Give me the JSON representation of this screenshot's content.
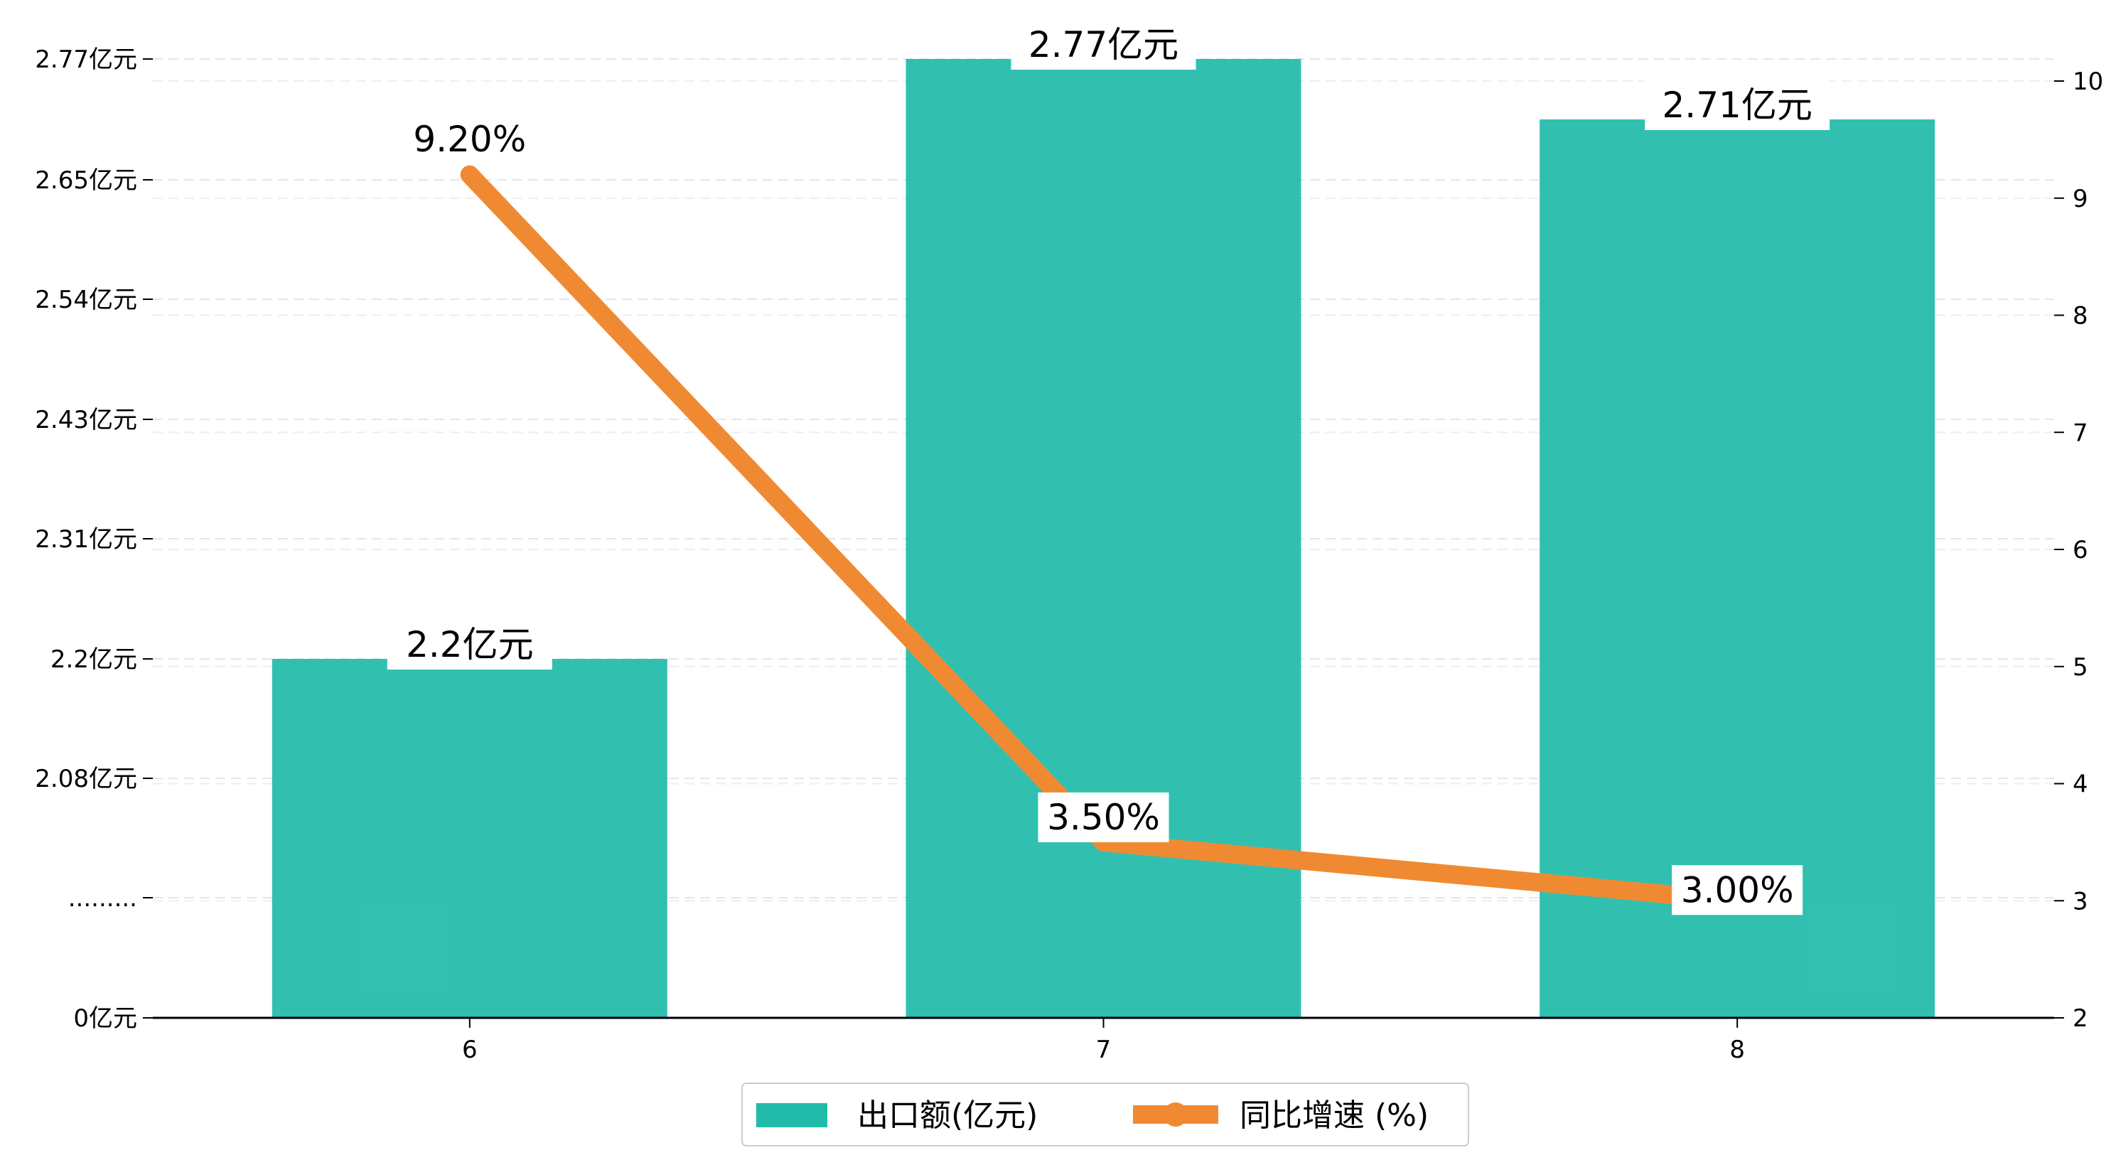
{
  "chart_data": {
    "type": "bar",
    "categories": [
      "6",
      "7",
      "8"
    ],
    "series": [
      {
        "name": "出口额(亿元)",
        "type": "bar",
        "axis": "left",
        "color": "#20bba9",
        "values": [
          2.2,
          2.77,
          2.71
        ],
        "labels": [
          "2.2亿元",
          "2.77亿元",
          "2.71亿元"
        ]
      },
      {
        "name": "同比增速 (%)",
        "type": "line",
        "axis": "right",
        "color": "#f08a32",
        "values": [
          9.2,
          3.5,
          3.0
        ],
        "labels": [
          "9.20%",
          "3.50%",
          "3.00%"
        ]
      }
    ],
    "left_axis": {
      "ticks": [
        {
          "value": 0,
          "label": "0亿元"
        },
        {
          "value": 1,
          "label": "........."
        },
        {
          "value": 2.08,
          "label": "2.08亿元"
        },
        {
          "value": 2.2,
          "label": "2.2亿元"
        },
        {
          "value": 2.31,
          "label": "2.31亿元"
        },
        {
          "value": 2.43,
          "label": "2.43亿元"
        },
        {
          "value": 2.54,
          "label": "2.54亿元"
        },
        {
          "value": 2.65,
          "label": "2.65亿元"
        },
        {
          "value": 2.77,
          "label": "2.77亿元"
        }
      ],
      "broken": true
    },
    "right_axis": {
      "ylim": [
        2,
        10.2
      ],
      "ticks": [
        2,
        3,
        4,
        5,
        6,
        7,
        8,
        9,
        10
      ]
    },
    "grid": true,
    "legend_position": "bottom-center",
    "title": "",
    "xlabel": "",
    "ylabel": ""
  }
}
